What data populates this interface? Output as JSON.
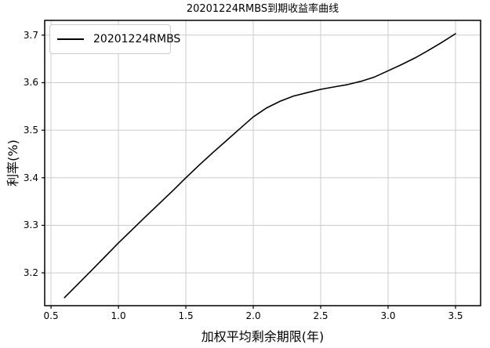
{
  "figure": {
    "background": "#ffffff",
    "text_color": "#000000"
  },
  "legend": {
    "label": "20201224RMBS",
    "line_color": "#000000",
    "position": "upper-left"
  },
  "chart_data": {
    "type": "line",
    "title": "20201224RMBS到期收益率曲线",
    "xlabel": "加权平均剩余期限(年)",
    "ylabel": "利率(%)",
    "grid": true,
    "grid_color": "#cccccc",
    "spine_color": "#000000",
    "xlim": [
      0.453,
      3.686
    ],
    "ylim": [
      3.131,
      3.731
    ],
    "x_ticks": [
      0.5,
      1.0,
      1.5,
      2.0,
      2.5,
      3.0,
      3.5
    ],
    "x_tick_labels": [
      "0.5",
      "1.0",
      "1.5",
      "2.0",
      "2.5",
      "3.0",
      "3.5"
    ],
    "y_ticks": [
      3.2,
      3.3,
      3.4,
      3.5,
      3.6,
      3.7
    ],
    "y_tick_labels": [
      "3.2",
      "3.3",
      "3.4",
      "3.5",
      "3.6",
      "3.7"
    ],
    "series": [
      {
        "name": "20201224RMBS",
        "color": "#000000",
        "line_width": 1.6,
        "x": [
          0.6,
          0.8,
          1.0,
          1.2,
          1.4,
          1.5,
          1.6,
          1.7,
          1.8,
          1.9,
          2.0,
          2.1,
          2.2,
          2.3,
          2.4,
          2.5,
          2.6,
          2.7,
          2.8,
          2.9,
          3.0,
          3.1,
          3.2,
          3.3,
          3.4,
          3.5
        ],
        "y": [
          3.148,
          3.205,
          3.263,
          3.318,
          3.372,
          3.4,
          3.427,
          3.453,
          3.478,
          3.503,
          3.528,
          3.547,
          3.561,
          3.572,
          3.579,
          3.586,
          3.591,
          3.596,
          3.603,
          3.612,
          3.625,
          3.638,
          3.652,
          3.668,
          3.685,
          3.703
        ]
      }
    ]
  }
}
